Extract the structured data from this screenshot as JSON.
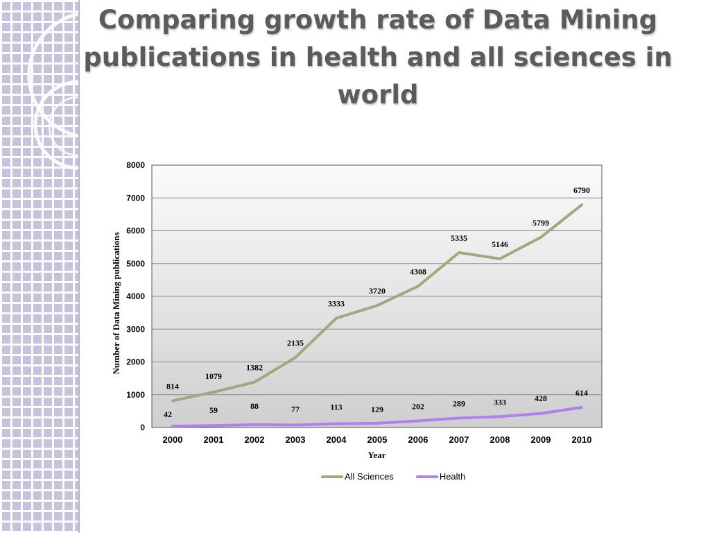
{
  "slide": {
    "title": "Comparing growth rate of Data Mining publications in health and all sciences in world"
  },
  "chart_data": {
    "type": "line",
    "xlabel": "Year",
    "ylabel": "Number of Data Mining publications",
    "categories": [
      "2000",
      "2001",
      "2002",
      "2003",
      "2004",
      "2005",
      "2006",
      "2007",
      "2008",
      "2009",
      "2010"
    ],
    "ylim": [
      0,
      8000
    ],
    "yticks": [
      0,
      1000,
      2000,
      3000,
      4000,
      5000,
      6000,
      7000,
      8000
    ],
    "grid": true,
    "legend_position": "bottom",
    "series": [
      {
        "name": "All Sciences",
        "color": "#9bab7e",
        "values": [
          814,
          1079,
          1382,
          2135,
          3333,
          3720,
          4308,
          5335,
          5146,
          5799,
          6790
        ]
      },
      {
        "name": "Health",
        "color": "#b07ff0",
        "values": [
          42,
          59,
          88,
          77,
          113,
          129,
          202,
          289,
          333,
          428,
          614
        ]
      }
    ]
  }
}
